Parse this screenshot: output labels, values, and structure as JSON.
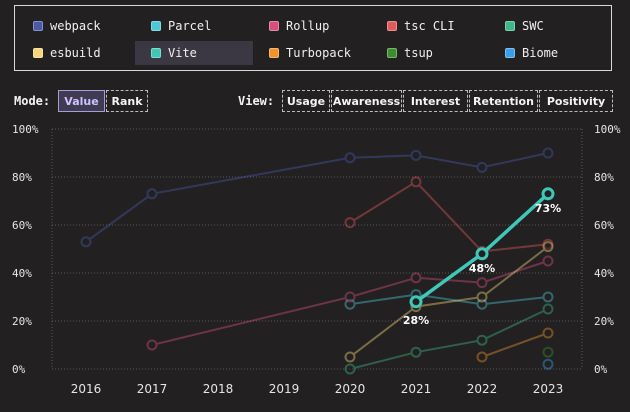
{
  "legend": [
    {
      "label": "webpack",
      "color": "#4a5aa8",
      "icon": "square-swatch"
    },
    {
      "label": "Parcel",
      "color": "#4ec8d8",
      "icon": "square-swatch"
    },
    {
      "label": "Rollup",
      "color": "#d5507a",
      "icon": "square-swatch"
    },
    {
      "label": "tsc CLI",
      "color": "#e05a5a",
      "icon": "square-swatch"
    },
    {
      "label": "SWC",
      "color": "#3fb889",
      "icon": "square-swatch"
    },
    {
      "label": "esbuild",
      "color": "#f3d77a",
      "icon": "square-swatch"
    },
    {
      "label": "Vite",
      "color": "#3fc7b8",
      "icon": "square-swatch",
      "active": true
    },
    {
      "label": "Turbopack",
      "color": "#f0932c",
      "icon": "square-swatch"
    },
    {
      "label": "tsup",
      "color": "#3a8f2c",
      "icon": "square-swatch"
    },
    {
      "label": "Biome",
      "color": "#3a9ee8",
      "icon": "square-swatch"
    }
  ],
  "mode": {
    "label": "Mode:",
    "buttons": [
      {
        "label": "Value",
        "selected": true
      },
      {
        "label": "Rank",
        "selected": false
      }
    ]
  },
  "view": {
    "label": "View:",
    "buttons": [
      {
        "label": "Usage"
      },
      {
        "label": "Awareness"
      },
      {
        "label": "Interest"
      },
      {
        "label": "Retention"
      },
      {
        "label": "Positivity"
      }
    ]
  },
  "chart_data": {
    "type": "line",
    "x": [
      2016,
      2017,
      2018,
      2019,
      2020,
      2021,
      2022,
      2023
    ],
    "y_ticks": [
      "0%",
      "20%",
      "40%",
      "60%",
      "80%",
      "100%"
    ],
    "ylim": [
      0,
      100
    ],
    "grid": true,
    "highlighted_series": "Vite",
    "series": [
      {
        "name": "webpack",
        "color": "#4a5aa8",
        "points": [
          [
            2016,
            53
          ],
          [
            2017,
            73
          ],
          [
            2020,
            88
          ],
          [
            2021,
            89
          ],
          [
            2022,
            84
          ],
          [
            2023,
            90
          ]
        ]
      },
      {
        "name": "Parcel",
        "color": "#4ec8d8",
        "points": [
          [
            2020,
            27
          ],
          [
            2021,
            31
          ],
          [
            2022,
            27
          ],
          [
            2023,
            30
          ]
        ]
      },
      {
        "name": "Rollup",
        "color": "#d5507a",
        "points": [
          [
            2017,
            10
          ],
          [
            2020,
            30
          ],
          [
            2021,
            38
          ],
          [
            2022,
            36
          ],
          [
            2023,
            45
          ]
        ]
      },
      {
        "name": "tsc CLI",
        "color": "#e05a5a",
        "points": [
          [
            2020,
            61
          ],
          [
            2021,
            78
          ],
          [
            2022,
            49
          ],
          [
            2023,
            52
          ]
        ]
      },
      {
        "name": "SWC",
        "color": "#3fb889",
        "points": [
          [
            2020,
            0
          ],
          [
            2021,
            7
          ],
          [
            2022,
            12
          ],
          [
            2023,
            25
          ]
        ]
      },
      {
        "name": "esbuild",
        "color": "#f3d77a",
        "points": [
          [
            2020,
            5
          ],
          [
            2021,
            26
          ],
          [
            2022,
            30
          ],
          [
            2023,
            51
          ]
        ]
      },
      {
        "name": "Vite",
        "color": "#3fc7b8",
        "points": [
          [
            2021,
            28
          ],
          [
            2022,
            48
          ],
          [
            2023,
            73
          ]
        ],
        "labels": [
          "28%",
          "48%",
          "73%"
        ]
      },
      {
        "name": "Turbopack",
        "color": "#f0932c",
        "points": [
          [
            2022,
            5
          ],
          [
            2023,
            15
          ]
        ]
      },
      {
        "name": "tsup",
        "color": "#3a8f2c",
        "points": [
          [
            2023,
            7
          ]
        ]
      },
      {
        "name": "Biome",
        "color": "#3a9ee8",
        "points": [
          [
            2023,
            2
          ]
        ]
      }
    ]
  }
}
